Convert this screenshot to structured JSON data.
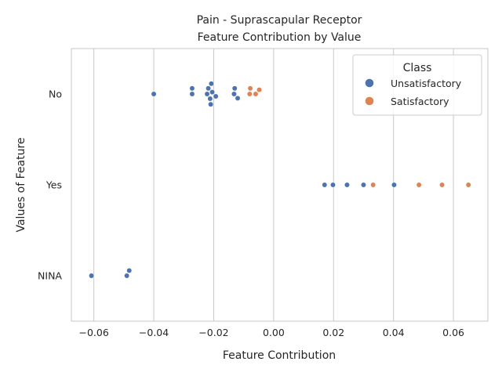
{
  "chart_data": {
    "type": "scatter",
    "subtype": "swarm",
    "title_line1": "Pain - Suprascapular Receptor",
    "title_line2": "Feature Contribution by Value",
    "xlabel": "Feature Contribution",
    "ylabel": "Values of Feature",
    "xlim": [
      -0.0675,
      0.0715
    ],
    "x_ticks": [
      -0.06,
      -0.04,
      -0.02,
      0.0,
      0.02,
      0.04,
      0.06
    ],
    "x_tick_labels": [
      "−0.06",
      "−0.04",
      "−0.02",
      "0.00",
      "0.02",
      "0.04",
      "0.06"
    ],
    "categories": [
      "No",
      "Yes",
      "NINA"
    ],
    "grid": "vertical",
    "legend": {
      "title": "Class",
      "placement": "top-right",
      "entries": [
        {
          "name": "Unsatisfactory",
          "color": "#4c72b0"
        },
        {
          "name": "Satisfactory",
          "color": "#dd8452"
        }
      ]
    },
    "series": [
      {
        "name": "Unsatisfactory",
        "color": "#4c72b0",
        "points": [
          {
            "category": "No",
            "x": -0.04
          },
          {
            "category": "No",
            "x": -0.0272
          },
          {
            "category": "No",
            "x": -0.0272
          },
          {
            "category": "No",
            "x": -0.0222
          },
          {
            "category": "No",
            "x": -0.0218
          },
          {
            "category": "No",
            "x": -0.021
          },
          {
            "category": "No",
            "x": -0.0212
          },
          {
            "category": "No",
            "x": -0.0208
          },
          {
            "category": "No",
            "x": -0.0205
          },
          {
            "category": "No",
            "x": -0.0193
          },
          {
            "category": "No",
            "x": -0.013
          },
          {
            "category": "No",
            "x": -0.0132
          },
          {
            "category": "No",
            "x": -0.012
          },
          {
            "category": "Yes",
            "x": 0.017
          },
          {
            "category": "Yes",
            "x": 0.0198
          },
          {
            "category": "Yes",
            "x": 0.0245
          },
          {
            "category": "Yes",
            "x": 0.03
          },
          {
            "category": "Yes",
            "x": 0.0402
          },
          {
            "category": "NINA",
            "x": -0.0608
          },
          {
            "category": "NINA",
            "x": -0.049
          },
          {
            "category": "NINA",
            "x": -0.0482
          }
        ]
      },
      {
        "name": "Satisfactory",
        "color": "#dd8452",
        "points": [
          {
            "category": "No",
            "x": -0.0078
          },
          {
            "category": "No",
            "x": -0.008
          },
          {
            "category": "No",
            "x": -0.006
          },
          {
            "category": "No",
            "x": -0.0048
          },
          {
            "category": "Yes",
            "x": 0.0332
          },
          {
            "category": "Yes",
            "x": 0.0485
          },
          {
            "category": "Yes",
            "x": 0.0562
          },
          {
            "category": "Yes",
            "x": 0.065
          }
        ]
      }
    ]
  }
}
